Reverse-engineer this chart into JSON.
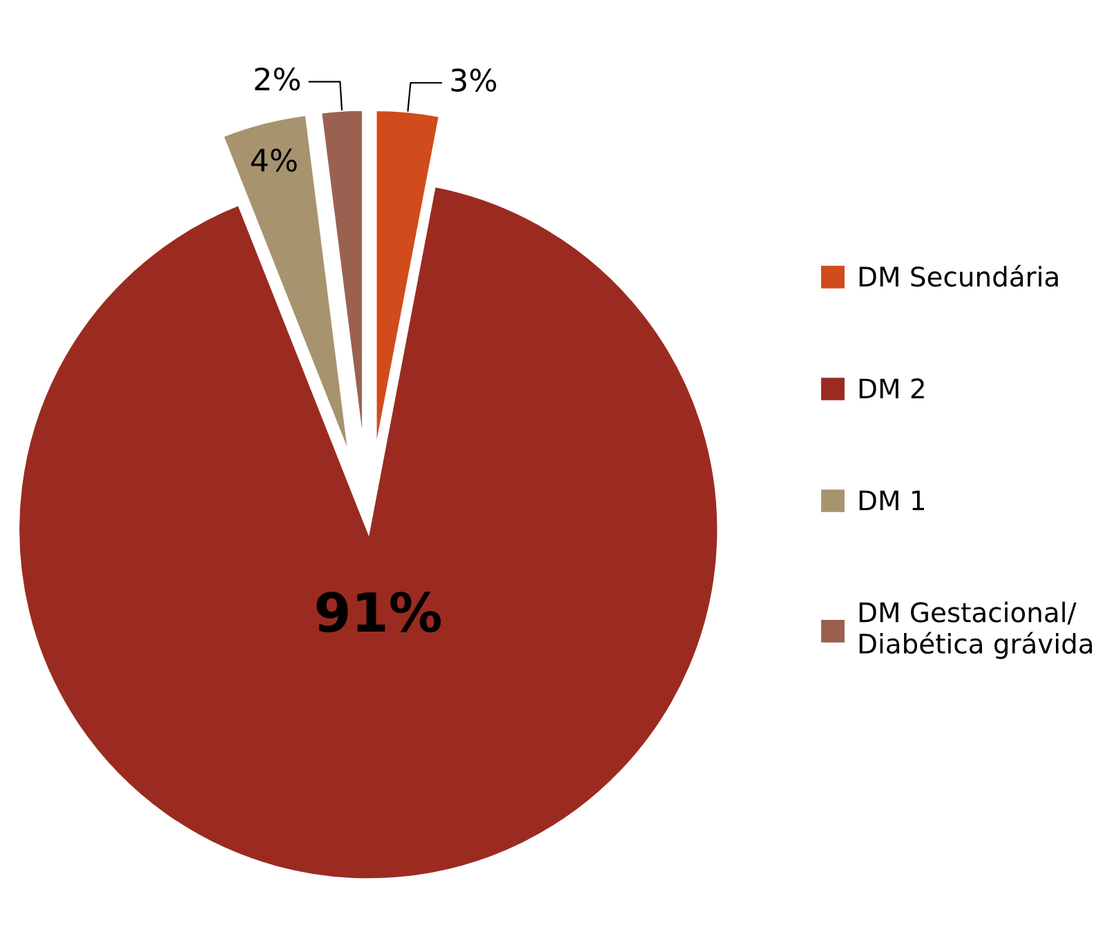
{
  "chart_data": {
    "type": "pie",
    "categories": [
      "DM Secundária",
      "DM 2",
      "DM 1",
      "DM Gestacional/\nDiabética grávida"
    ],
    "values": [
      3,
      91,
      4,
      2
    ],
    "colors": [
      "#d14b1c",
      "#9b2b20",
      "#a8936f",
      "#9b6150"
    ],
    "value_labels": [
      "3%",
      "91%",
      "4%",
      "2%"
    ],
    "legend": "right"
  }
}
